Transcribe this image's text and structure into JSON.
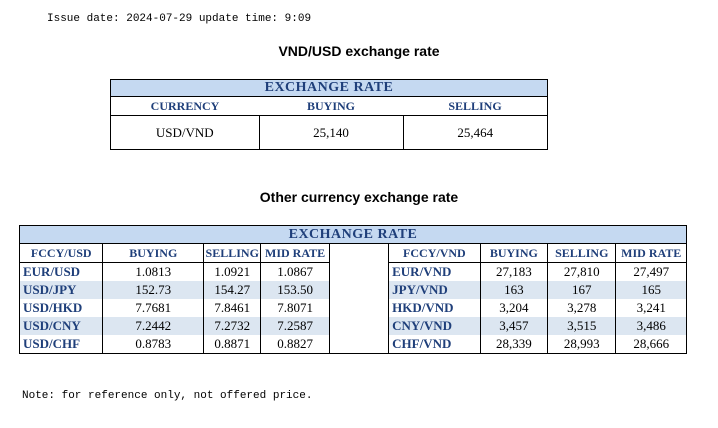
{
  "issue_line": "Issue date: 2024-07-29 update time: 9:09",
  "main_title": "VND/USD exchange rate",
  "main_table": {
    "header": "EXCHANGE RATE",
    "columns": [
      "CURRENCY",
      "BUYING",
      "SELLING"
    ],
    "row": [
      "USD/VND",
      "25,140",
      "25,464"
    ]
  },
  "other_title": "Other currency exchange rate",
  "other_table": {
    "header": "EXCHANGE  RATE",
    "left_columns": [
      "FCCY/USD",
      "BUYING",
      "SELLING",
      "MID RATE"
    ],
    "right_columns": [
      "FCCY/VND",
      "BUYING",
      "SELLING",
      "MID RATE"
    ],
    "rows": [
      {
        "left": [
          "EUR/USD",
          "1.0813",
          "1.0921",
          "1.0867"
        ],
        "right": [
          "EUR/VND",
          "27,183",
          "27,810",
          "27,497"
        ]
      },
      {
        "left": [
          "USD/JPY",
          "152.73",
          "154.27",
          "153.50"
        ],
        "right": [
          "JPY/VND",
          "163",
          "167",
          "165"
        ]
      },
      {
        "left": [
          "USD/HKD",
          "7.7681",
          "7.8461",
          "7.8071"
        ],
        "right": [
          "HKD/VND",
          "3,204",
          "3,278",
          "3,241"
        ]
      },
      {
        "left": [
          "USD/CNY",
          "7.2442",
          "7.2732",
          "7.2587"
        ],
        "right": [
          "CNY/VND",
          "3,457",
          "3,515",
          "3,486"
        ]
      },
      {
        "left": [
          "USD/CHF",
          "0.8783",
          "0.8871",
          "0.8827"
        ],
        "right": [
          "CHF/VND",
          "28,339",
          "28,993",
          "28,666"
        ]
      }
    ]
  },
  "note": "Note: for reference only, not offered price."
}
